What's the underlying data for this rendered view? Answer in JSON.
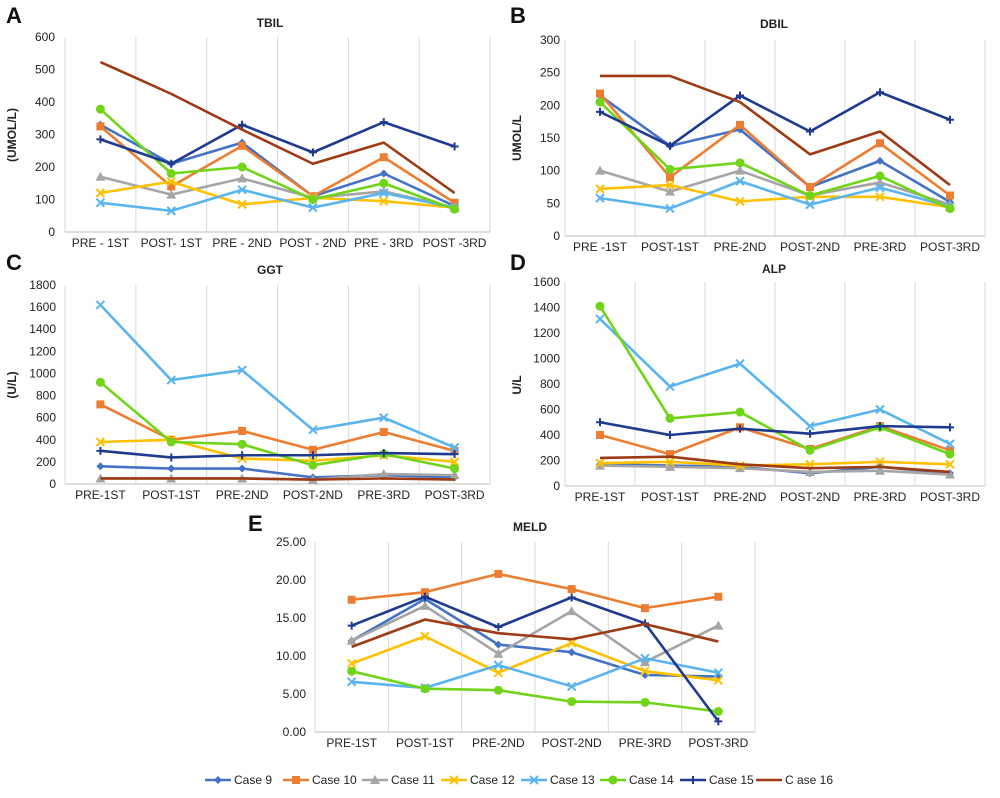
{
  "legend": [
    {
      "name": "Case 9",
      "color": "#4472c4",
      "marker": "diamond"
    },
    {
      "name": "Case 10",
      "color": "#ed7d31",
      "marker": "square"
    },
    {
      "name": "Case 11",
      "color": "#a5a5a5",
      "marker": "triangle"
    },
    {
      "name": "Case 12",
      "color": "#ffc000",
      "marker": "x"
    },
    {
      "name": "Case 13",
      "color": "#5ab4ef",
      "marker": "x"
    },
    {
      "name": "Case 14",
      "color": "#70d418",
      "marker": "circle"
    },
    {
      "name": "Case 15",
      "color": "#1f3b8f",
      "marker": "plus"
    },
    {
      "name": "C ase 16",
      "color": "#9e3a14",
      "marker": "none"
    }
  ],
  "chart_data": [
    {
      "letter": "A",
      "title": "TBIL",
      "type": "line",
      "ylabel": "(UMOL/L)",
      "ylim": [
        0,
        600
      ],
      "yticks": [
        "0",
        "100",
        "200",
        "300",
        "400",
        "500",
        "600"
      ],
      "categories": [
        "PRE - 1ST",
        "POST- 1ST",
        "PRE - 2ND",
        "POST - 2ND",
        "PRE - 3RD",
        "POST -3RD"
      ],
      "series": [
        {
          "name": "Case 9",
          "values": [
            330,
            210,
            275,
            110,
            180,
            80
          ]
        },
        {
          "name": "Case 10",
          "values": [
            325,
            140,
            265,
            110,
            230,
            90
          ]
        },
        {
          "name": "Case 11",
          "values": [
            170,
            115,
            165,
            105,
            125,
            75
          ]
        },
        {
          "name": "Case 12",
          "values": [
            120,
            155,
            85,
            105,
            95,
            75
          ]
        },
        {
          "name": "Case 13",
          "values": [
            90,
            65,
            130,
            75,
            120,
            75
          ]
        },
        {
          "name": "Case 14",
          "values": [
            378,
            180,
            200,
            100,
            150,
            70
          ]
        },
        {
          "name": "Case 15",
          "values": [
            285,
            210,
            330,
            245,
            338,
            263
          ]
        },
        {
          "name": "C ase 16",
          "values": [
            523,
            425,
            315,
            210,
            275,
            120
          ]
        }
      ]
    },
    {
      "letter": "B",
      "title": "DBIL",
      "type": "line",
      "ylabel": "UMOL/L",
      "ylim": [
        0,
        300
      ],
      "yticks": [
        "0",
        "50",
        "100",
        "150",
        "200",
        "250",
        "300"
      ],
      "categories": [
        "PRE -1ST",
        "POST-1ST",
        "PRE-2ND",
        "POST-2ND",
        "PRE-3RD",
        "POST-3RD"
      ],
      "series": [
        {
          "name": "Case 9",
          "values": [
            215,
            138,
            163,
            75,
            115,
            52
          ]
        },
        {
          "name": "Case 10",
          "values": [
            218,
            90,
            170,
            75,
            142,
            62
          ]
        },
        {
          "name": "Case 11",
          "values": [
            100,
            68,
            100,
            62,
            82,
            48
          ]
        },
        {
          "name": "Case 12",
          "values": [
            72,
            78,
            53,
            60,
            60,
            44
          ]
        },
        {
          "name": "Case 13",
          "values": [
            58,
            42,
            84,
            48,
            74,
            45
          ]
        },
        {
          "name": "Case 14",
          "values": [
            205,
            102,
            112,
            62,
            92,
            42
          ]
        },
        {
          "name": "Case 15",
          "values": [
            190,
            138,
            215,
            160,
            220,
            178
          ]
        },
        {
          "name": "C ase 16",
          "values": [
            245,
            245,
            205,
            125,
            160,
            78
          ]
        }
      ]
    },
    {
      "letter": "C",
      "title": "GGT",
      "type": "line",
      "ylabel": "(U/L)",
      "ylim": [
        0,
        1800
      ],
      "yticks": [
        "0",
        "200",
        "400",
        "600",
        "800",
        "1000",
        "1200",
        "1400",
        "1600",
        "1800"
      ],
      "categories": [
        "PRE-1ST",
        "POST-1ST",
        "PRE-2ND",
        "POST-2ND",
        "PRE-3RD",
        "POST-3RD"
      ],
      "series": [
        {
          "name": "Case 9",
          "values": [
            160,
            140,
            140,
            60,
            80,
            60
          ]
        },
        {
          "name": "Case 10",
          "values": [
            720,
            400,
            480,
            310,
            470,
            300
          ]
        },
        {
          "name": "Case 11",
          "values": [
            50,
            50,
            50,
            40,
            90,
            80
          ]
        },
        {
          "name": "Case 12",
          "values": [
            380,
            400,
            230,
            210,
            260,
            200
          ]
        },
        {
          "name": "Case 13",
          "values": [
            1620,
            940,
            1030,
            490,
            600,
            330
          ]
        },
        {
          "name": "Case 14",
          "values": [
            920,
            380,
            360,
            170,
            270,
            140
          ]
        },
        {
          "name": "Case 15",
          "values": [
            300,
            240,
            260,
            260,
            280,
            270
          ]
        },
        {
          "name": "C ase 16",
          "values": [
            50,
            50,
            50,
            40,
            50,
            40
          ]
        }
      ]
    },
    {
      "letter": "D",
      "title": "ALP",
      "type": "line",
      "ylabel": "U/L",
      "ylim": [
        0,
        1600
      ],
      "yticks": [
        "0",
        "200",
        "400",
        "600",
        "800",
        "1000",
        "1200",
        "1400",
        "1600"
      ],
      "categories": [
        "PRE-1ST",
        "POST-1ST",
        "PRE-2ND",
        "POST-2ND",
        "PRE-3RD",
        "POST-3RD"
      ],
      "series": [
        {
          "name": "Case 9",
          "values": [
            170,
            160,
            150,
            100,
            150,
            100
          ]
        },
        {
          "name": "Case 10",
          "values": [
            400,
            250,
            460,
            290,
            470,
            280
          ]
        },
        {
          "name": "Case 11",
          "values": [
            160,
            150,
            140,
            110,
            120,
            90
          ]
        },
        {
          "name": "Case 12",
          "values": [
            180,
            190,
            160,
            170,
            190,
            170
          ]
        },
        {
          "name": "Case 13",
          "values": [
            1310,
            780,
            960,
            470,
            600,
            330
          ]
        },
        {
          "name": "Case 14",
          "values": [
            1410,
            530,
            580,
            280,
            460,
            250
          ]
        },
        {
          "name": "Case 15",
          "values": [
            500,
            400,
            450,
            410,
            470,
            460
          ]
        },
        {
          "name": "C ase 16",
          "values": [
            220,
            230,
            170,
            140,
            150,
            110
          ]
        }
      ]
    },
    {
      "letter": "E",
      "title": "MELD",
      "type": "line",
      "ylabel": "",
      "ylim": [
        0,
        25
      ],
      "yticks": [
        "0.00",
        "5.00",
        "10.00",
        "15.00",
        "20.00",
        "25.00"
      ],
      "categories": [
        "PRE-1ST",
        "POST-1ST",
        "PRE-2ND",
        "POST-2ND",
        "PRE-3RD",
        "POST-3RD"
      ],
      "series": [
        {
          "name": "Case 9",
          "values": [
            12.0,
            17.5,
            11.5,
            10.5,
            7.5,
            7.3
          ]
        },
        {
          "name": "Case 10",
          "values": [
            17.4,
            18.4,
            20.8,
            18.8,
            16.3,
            17.8
          ]
        },
        {
          "name": "Case 11",
          "values": [
            12.0,
            16.6,
            10.3,
            15.9,
            9.2,
            14.0
          ]
        },
        {
          "name": "Case 12",
          "values": [
            9.0,
            12.6,
            7.8,
            11.7,
            8.0,
            6.8
          ]
        },
        {
          "name": "Case 13",
          "values": [
            6.6,
            5.8,
            8.8,
            6.0,
            9.7,
            7.8
          ]
        },
        {
          "name": "Case 14",
          "values": [
            8.0,
            5.7,
            5.5,
            4.0,
            3.9,
            2.7
          ]
        },
        {
          "name": "Case 15",
          "values": [
            14.0,
            17.8,
            13.8,
            17.7,
            14.3,
            1.4
          ]
        },
        {
          "name": "C ase 16",
          "values": [
            11.2,
            14.8,
            13.0,
            12.2,
            14.2,
            11.9
          ]
        }
      ]
    }
  ]
}
